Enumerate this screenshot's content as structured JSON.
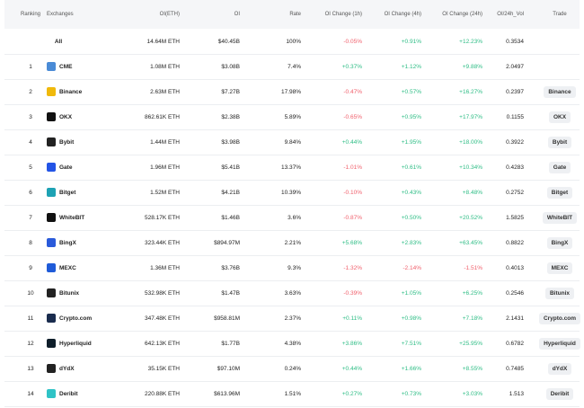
{
  "table": {
    "columns": [
      "Ranking",
      "Exchanges",
      "OI(ETH)",
      "OI",
      "Rate",
      "OI Change (1h)",
      "OI Change (4h)",
      "OI Change (24h)",
      "OI/24h_Vol",
      "Trade"
    ],
    "rows": [
      {
        "name": "All",
        "oi_eth": "14.64M ETH",
        "oi": "$40.45B",
        "rate": "100%",
        "ch1h": "-0.05%",
        "ch4h": "+0.91%",
        "ch24h": "+12.23%",
        "vol": "0.3534"
      },
      {
        "rank": "1",
        "name": "CME",
        "oi_eth": "1.08M ETH",
        "oi": "$3.08B",
        "rate": "7.4%",
        "ch1h": "+0.37%",
        "ch4h": "+1.12%",
        "ch24h": "+9.88%",
        "vol": "2.0497"
      },
      {
        "rank": "2",
        "name": "Binance",
        "oi_eth": "2.63M ETH",
        "oi": "$7.27B",
        "rate": "17.98%",
        "ch1h": "-0.47%",
        "ch4h": "+0.57%",
        "ch24h": "+16.27%",
        "vol": "0.2397",
        "trade": "Binance"
      },
      {
        "rank": "3",
        "name": "OKX",
        "oi_eth": "862.61K ETH",
        "oi": "$2.38B",
        "rate": "5.89%",
        "ch1h": "-0.65%",
        "ch4h": "+0.95%",
        "ch24h": "+17.97%",
        "vol": "0.1155",
        "trade": "OKX"
      },
      {
        "rank": "4",
        "name": "Bybit",
        "oi_eth": "1.44M ETH",
        "oi": "$3.98B",
        "rate": "9.84%",
        "ch1h": "+0.44%",
        "ch4h": "+1.95%",
        "ch24h": "+18.00%",
        "vol": "0.3922",
        "trade": "Bybit"
      },
      {
        "rank": "5",
        "name": "Gate",
        "oi_eth": "1.96M ETH",
        "oi": "$5.41B",
        "rate": "13.37%",
        "ch1h": "-1.01%",
        "ch4h": "+0.61%",
        "ch24h": "+10.34%",
        "vol": "0.4283",
        "trade": "Gate"
      },
      {
        "rank": "6",
        "name": "Bitget",
        "oi_eth": "1.52M ETH",
        "oi": "$4.21B",
        "rate": "10.39%",
        "ch1h": "-0.10%",
        "ch4h": "+0.43%",
        "ch24h": "+8.48%",
        "vol": "0.2752",
        "trade": "Bitget"
      },
      {
        "rank": "7",
        "name": "WhiteBIT",
        "oi_eth": "528.17K ETH",
        "oi": "$1.46B",
        "rate": "3.6%",
        "ch1h": "-0.87%",
        "ch4h": "+0.50%",
        "ch24h": "+20.52%",
        "vol": "1.5825",
        "trade": "WhiteBIT"
      },
      {
        "rank": "8",
        "name": "BingX",
        "oi_eth": "323.44K ETH",
        "oi": "$894.97M",
        "rate": "2.21%",
        "ch1h": "+5.68%",
        "ch4h": "+2.83%",
        "ch24h": "+63.45%",
        "vol": "0.8822",
        "trade": "BingX"
      },
      {
        "rank": "9",
        "name": "MEXC",
        "oi_eth": "1.36M ETH",
        "oi": "$3.76B",
        "rate": "9.3%",
        "ch1h": "-1.32%",
        "ch4h": "-2.14%",
        "ch24h": "-1.51%",
        "vol": "0.4013",
        "trade": "MEXC"
      },
      {
        "rank": "10",
        "name": "Bitunix",
        "oi_eth": "532.98K ETH",
        "oi": "$1.47B",
        "rate": "3.63%",
        "ch1h": "-0.39%",
        "ch4h": "+1.05%",
        "ch24h": "+6.25%",
        "vol": "0.2546",
        "trade": "Bitunix"
      },
      {
        "rank": "11",
        "name": "Crypto.com",
        "oi_eth": "347.48K ETH",
        "oi": "$958.81M",
        "rate": "2.37%",
        "ch1h": "+0.11%",
        "ch4h": "+0.98%",
        "ch24h": "+7.18%",
        "vol": "2.1431",
        "trade": "Crypto.com"
      },
      {
        "rank": "12",
        "name": "Hyperliquid",
        "oi_eth": "642.13K ETH",
        "oi": "$1.77B",
        "rate": "4.38%",
        "ch1h": "+3.86%",
        "ch4h": "+7.51%",
        "ch24h": "+25.95%",
        "vol": "0.6782",
        "trade": "Hyperliquid"
      },
      {
        "rank": "13",
        "name": "dYdX",
        "oi_eth": "35.15K ETH",
        "oi": "$97.10M",
        "rate": "0.24%",
        "ch1h": "+0.44%",
        "ch4h": "+1.66%",
        "ch24h": "+8.55%",
        "vol": "0.7485",
        "trade": "dYdX"
      },
      {
        "rank": "14",
        "name": "Deribit",
        "oi_eth": "220.88K ETH",
        "oi": "$613.96M",
        "rate": "1.51%",
        "ch1h": "+0.27%",
        "ch4h": "+0.73%",
        "ch24h": "+3.03%",
        "vol": "1.513",
        "trade": "Deribit"
      }
    ]
  }
}
